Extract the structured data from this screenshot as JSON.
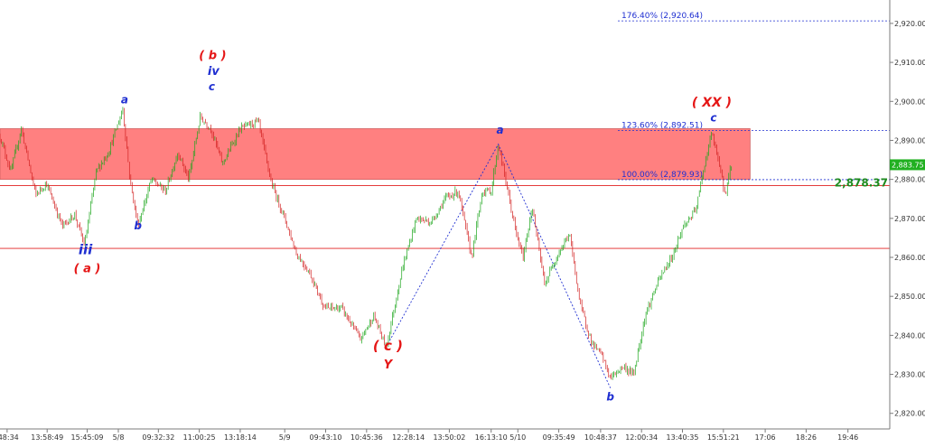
{
  "chart_data": {
    "type": "candlestick",
    "ylim": [
      2816,
      2926
    ],
    "xlim": [
      0,
      1000
    ],
    "y_axis": {
      "tick_values": [
        2820,
        2830,
        2840,
        2850,
        2860,
        2870,
        2880,
        2890,
        2900,
        2910,
        2920
      ],
      "tick_labels": [
        "2,820.00",
        "2,830.00",
        "2,840.00",
        "2,850.00",
        "2,860.00",
        "2,870.00",
        "2,880.00",
        "2,890.00",
        "2,900.00",
        "2,910.00",
        "2,920.00"
      ]
    },
    "x_axis": {
      "ticks": [
        {
          "x": 8,
          "label": ":48:34"
        },
        {
          "x": 53,
          "label": "13:58:49"
        },
        {
          "x": 98,
          "label": "15:45:09"
        },
        {
          "x": 133,
          "label": "5/8"
        },
        {
          "x": 178,
          "label": "09:32:32"
        },
        {
          "x": 224,
          "label": "11:00:25"
        },
        {
          "x": 270,
          "label": "13:18:14"
        },
        {
          "x": 320,
          "label": "5/9"
        },
        {
          "x": 366,
          "label": "09:43:10"
        },
        {
          "x": 412,
          "label": "10:45:36"
        },
        {
          "x": 459,
          "label": "12:28:14"
        },
        {
          "x": 505,
          "label": "13:50:02"
        },
        {
          "x": 552,
          "label": "16:13:10"
        },
        {
          "x": 582,
          "label": "5/10"
        },
        {
          "x": 628,
          "label": "09:35:49"
        },
        {
          "x": 675,
          "label": "10:48:37"
        },
        {
          "x": 721,
          "label": "12:00:34"
        },
        {
          "x": 767,
          "label": "13:40:35"
        },
        {
          "x": 813,
          "label": "15:51:21"
        },
        {
          "x": 860,
          "label": "17:06"
        },
        {
          "x": 906,
          "label": "18:26"
        },
        {
          "x": 953,
          "label": "19:46"
        }
      ]
    },
    "price_path": [
      {
        "x": 0,
        "y": 2891
      },
      {
        "x": 12,
        "y": 2882
      },
      {
        "x": 24,
        "y": 2893
      },
      {
        "x": 40,
        "y": 2876
      },
      {
        "x": 52,
        "y": 2879
      },
      {
        "x": 70,
        "y": 2868
      },
      {
        "x": 84,
        "y": 2871
      },
      {
        "x": 95,
        "y": 2863
      },
      {
        "x": 108,
        "y": 2882
      },
      {
        "x": 122,
        "y": 2887
      },
      {
        "x": 138,
        "y": 2898
      },
      {
        "x": 146,
        "y": 2880
      },
      {
        "x": 155,
        "y": 2868
      },
      {
        "x": 170,
        "y": 2880
      },
      {
        "x": 186,
        "y": 2877
      },
      {
        "x": 200,
        "y": 2887
      },
      {
        "x": 212,
        "y": 2880
      },
      {
        "x": 225,
        "y": 2896
      },
      {
        "x": 237,
        "y": 2893
      },
      {
        "x": 250,
        "y": 2884
      },
      {
        "x": 270,
        "y": 2893
      },
      {
        "x": 290,
        "y": 2895
      },
      {
        "x": 305,
        "y": 2879
      },
      {
        "x": 320,
        "y": 2870
      },
      {
        "x": 333,
        "y": 2861
      },
      {
        "x": 348,
        "y": 2856
      },
      {
        "x": 365,
        "y": 2847
      },
      {
        "x": 384,
        "y": 2847
      },
      {
        "x": 405,
        "y": 2839
      },
      {
        "x": 420,
        "y": 2845
      },
      {
        "x": 434,
        "y": 2837
      },
      {
        "x": 452,
        "y": 2857
      },
      {
        "x": 468,
        "y": 2870
      },
      {
        "x": 485,
        "y": 2869
      },
      {
        "x": 500,
        "y": 2875
      },
      {
        "x": 515,
        "y": 2877
      },
      {
        "x": 530,
        "y": 2860
      },
      {
        "x": 542,
        "y": 2877
      },
      {
        "x": 552,
        "y": 2877
      },
      {
        "x": 560,
        "y": 2889
      },
      {
        "x": 568,
        "y": 2880
      },
      {
        "x": 580,
        "y": 2866
      },
      {
        "x": 588,
        "y": 2860
      },
      {
        "x": 598,
        "y": 2873
      },
      {
        "x": 612,
        "y": 2853
      },
      {
        "x": 625,
        "y": 2860
      },
      {
        "x": 640,
        "y": 2866
      },
      {
        "x": 652,
        "y": 2848
      },
      {
        "x": 665,
        "y": 2838
      },
      {
        "x": 676,
        "y": 2835
      },
      {
        "x": 686,
        "y": 2829
      },
      {
        "x": 700,
        "y": 2832
      },
      {
        "x": 712,
        "y": 2830
      },
      {
        "x": 725,
        "y": 2845
      },
      {
        "x": 740,
        "y": 2854
      },
      {
        "x": 755,
        "y": 2860
      },
      {
        "x": 768,
        "y": 2868
      },
      {
        "x": 782,
        "y": 2872
      },
      {
        "x": 792,
        "y": 2884
      },
      {
        "x": 800,
        "y": 2892
      },
      {
        "x": 808,
        "y": 2884
      },
      {
        "x": 815,
        "y": 2876
      },
      {
        "x": 822,
        "y": 2884
      }
    ],
    "wave_path": [
      {
        "x": 434,
        "y": 2837
      },
      {
        "x": 560,
        "y": 2889
      },
      {
        "x": 686,
        "y": 2826.5
      }
    ],
    "resistance_zone": {
      "x_start": 0,
      "x_end": 843,
      "y_low": 2880,
      "y_high": 2893
    },
    "horizontal_lines": [
      {
        "y": 2878.4,
        "color": "#e02020"
      },
      {
        "y": 2862.3,
        "color": "#e02020"
      }
    ],
    "fib_levels": [
      {
        "label": "176.40% (2,920.64)",
        "value": 2920.64
      },
      {
        "label": "123.60% (2,892.51)",
        "value": 2892.51
      },
      {
        "label": "100.00% (2,879.93)",
        "value": 2879.93
      }
    ],
    "price_markers": [
      {
        "label": "2,883.75",
        "value": 2883.75,
        "color": "#20b020"
      },
      {
        "label": "2,878.37",
        "value": 2878.37,
        "color": "#1d8a1d"
      }
    ],
    "wave_labels": [
      {
        "text": "a",
        "x": 140,
        "y": 2899.5,
        "color": "#1f2fd1",
        "size": 12
      },
      {
        "text": "b",
        "x": 155,
        "y": 2867.2,
        "color": "#1f2fd1",
        "size": 12
      },
      {
        "text": "iii",
        "x": 96,
        "y": 2860.8,
        "color": "#1f2fd1",
        "size": 15
      },
      {
        "text": "( a )",
        "x": 98,
        "y": 2856.2,
        "color": "#e51616",
        "size": 13
      },
      {
        "text": "( b )",
        "x": 239,
        "y": 2910.8,
        "color": "#e51616",
        "size": 13
      },
      {
        "text": "iv",
        "x": 240,
        "y": 2906.8,
        "color": "#1f2fd1",
        "size": 13
      },
      {
        "text": "c",
        "x": 238,
        "y": 2902.8,
        "color": "#1f2fd1",
        "size": 12
      },
      {
        "text": "( c )",
        "x": 436,
        "y": 2836.2,
        "color": "#e51616",
        "size": 15
      },
      {
        "text": "Y",
        "x": 436,
        "y": 2831.5,
        "color": "#e51616",
        "size": 13
      },
      {
        "text": "a",
        "x": 562,
        "y": 2891.7,
        "color": "#1f2fd1",
        "size": 12
      },
      {
        "text": "b",
        "x": 686,
        "y": 2823.3,
        "color": "#1f2fd1",
        "size": 12
      },
      {
        "text": "( XX )",
        "x": 800,
        "y": 2898.7,
        "color": "#e51616",
        "size": 14
      },
      {
        "text": "c",
        "x": 802,
        "y": 2894.8,
        "color": "#1f2fd1",
        "size": 12
      }
    ],
    "colors": {
      "up": "#1aa51a",
      "down": "#d22020",
      "zone": "#ff8080",
      "fib": "#1f2fd1",
      "axis": "#7b7b7b"
    }
  }
}
